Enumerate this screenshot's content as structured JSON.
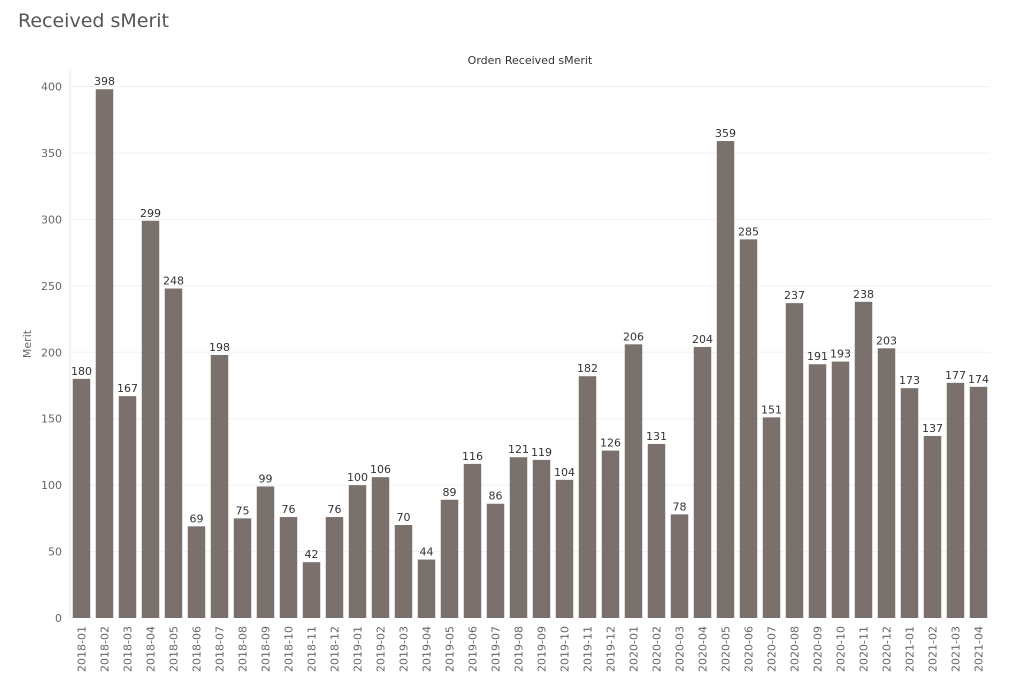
{
  "page": {
    "title": "Received sMerit"
  },
  "chart_data": {
    "type": "bar",
    "title": "Orden Received sMerit",
    "xlabel": "",
    "ylabel": "Merit",
    "ylim": [
      0,
      420
    ],
    "yticks": [
      0,
      50,
      100,
      150,
      200,
      250,
      300,
      350,
      400
    ],
    "grid": true,
    "bar_color": "#7a716c",
    "categories": [
      "2018-01",
      "2018-02",
      "2018-03",
      "2018-04",
      "2018-05",
      "2018-06",
      "2018-07",
      "2018-08",
      "2018-09",
      "2018-10",
      "2018-11",
      "2018-12",
      "2019-01",
      "2019-02",
      "2019-03",
      "2019-04",
      "2019-05",
      "2019-06",
      "2019-07",
      "2019-08",
      "2019-09",
      "2019-10",
      "2019-11",
      "2019-12",
      "2020-01",
      "2020-02",
      "2020-03",
      "2020-04",
      "2020-05",
      "2020-06",
      "2020-07",
      "2020-08",
      "2020-09",
      "2020-10",
      "2020-11",
      "2020-12",
      "2021-01",
      "2021-02",
      "2021-03",
      "2021-04"
    ],
    "values": [
      180,
      398,
      167,
      299,
      248,
      69,
      198,
      75,
      99,
      76,
      42,
      76,
      100,
      106,
      70,
      44,
      89,
      116,
      86,
      121,
      119,
      104,
      182,
      126,
      206,
      131,
      78,
      204,
      359,
      285,
      151,
      237,
      191,
      193,
      238,
      203,
      173,
      137,
      177,
      174
    ]
  }
}
